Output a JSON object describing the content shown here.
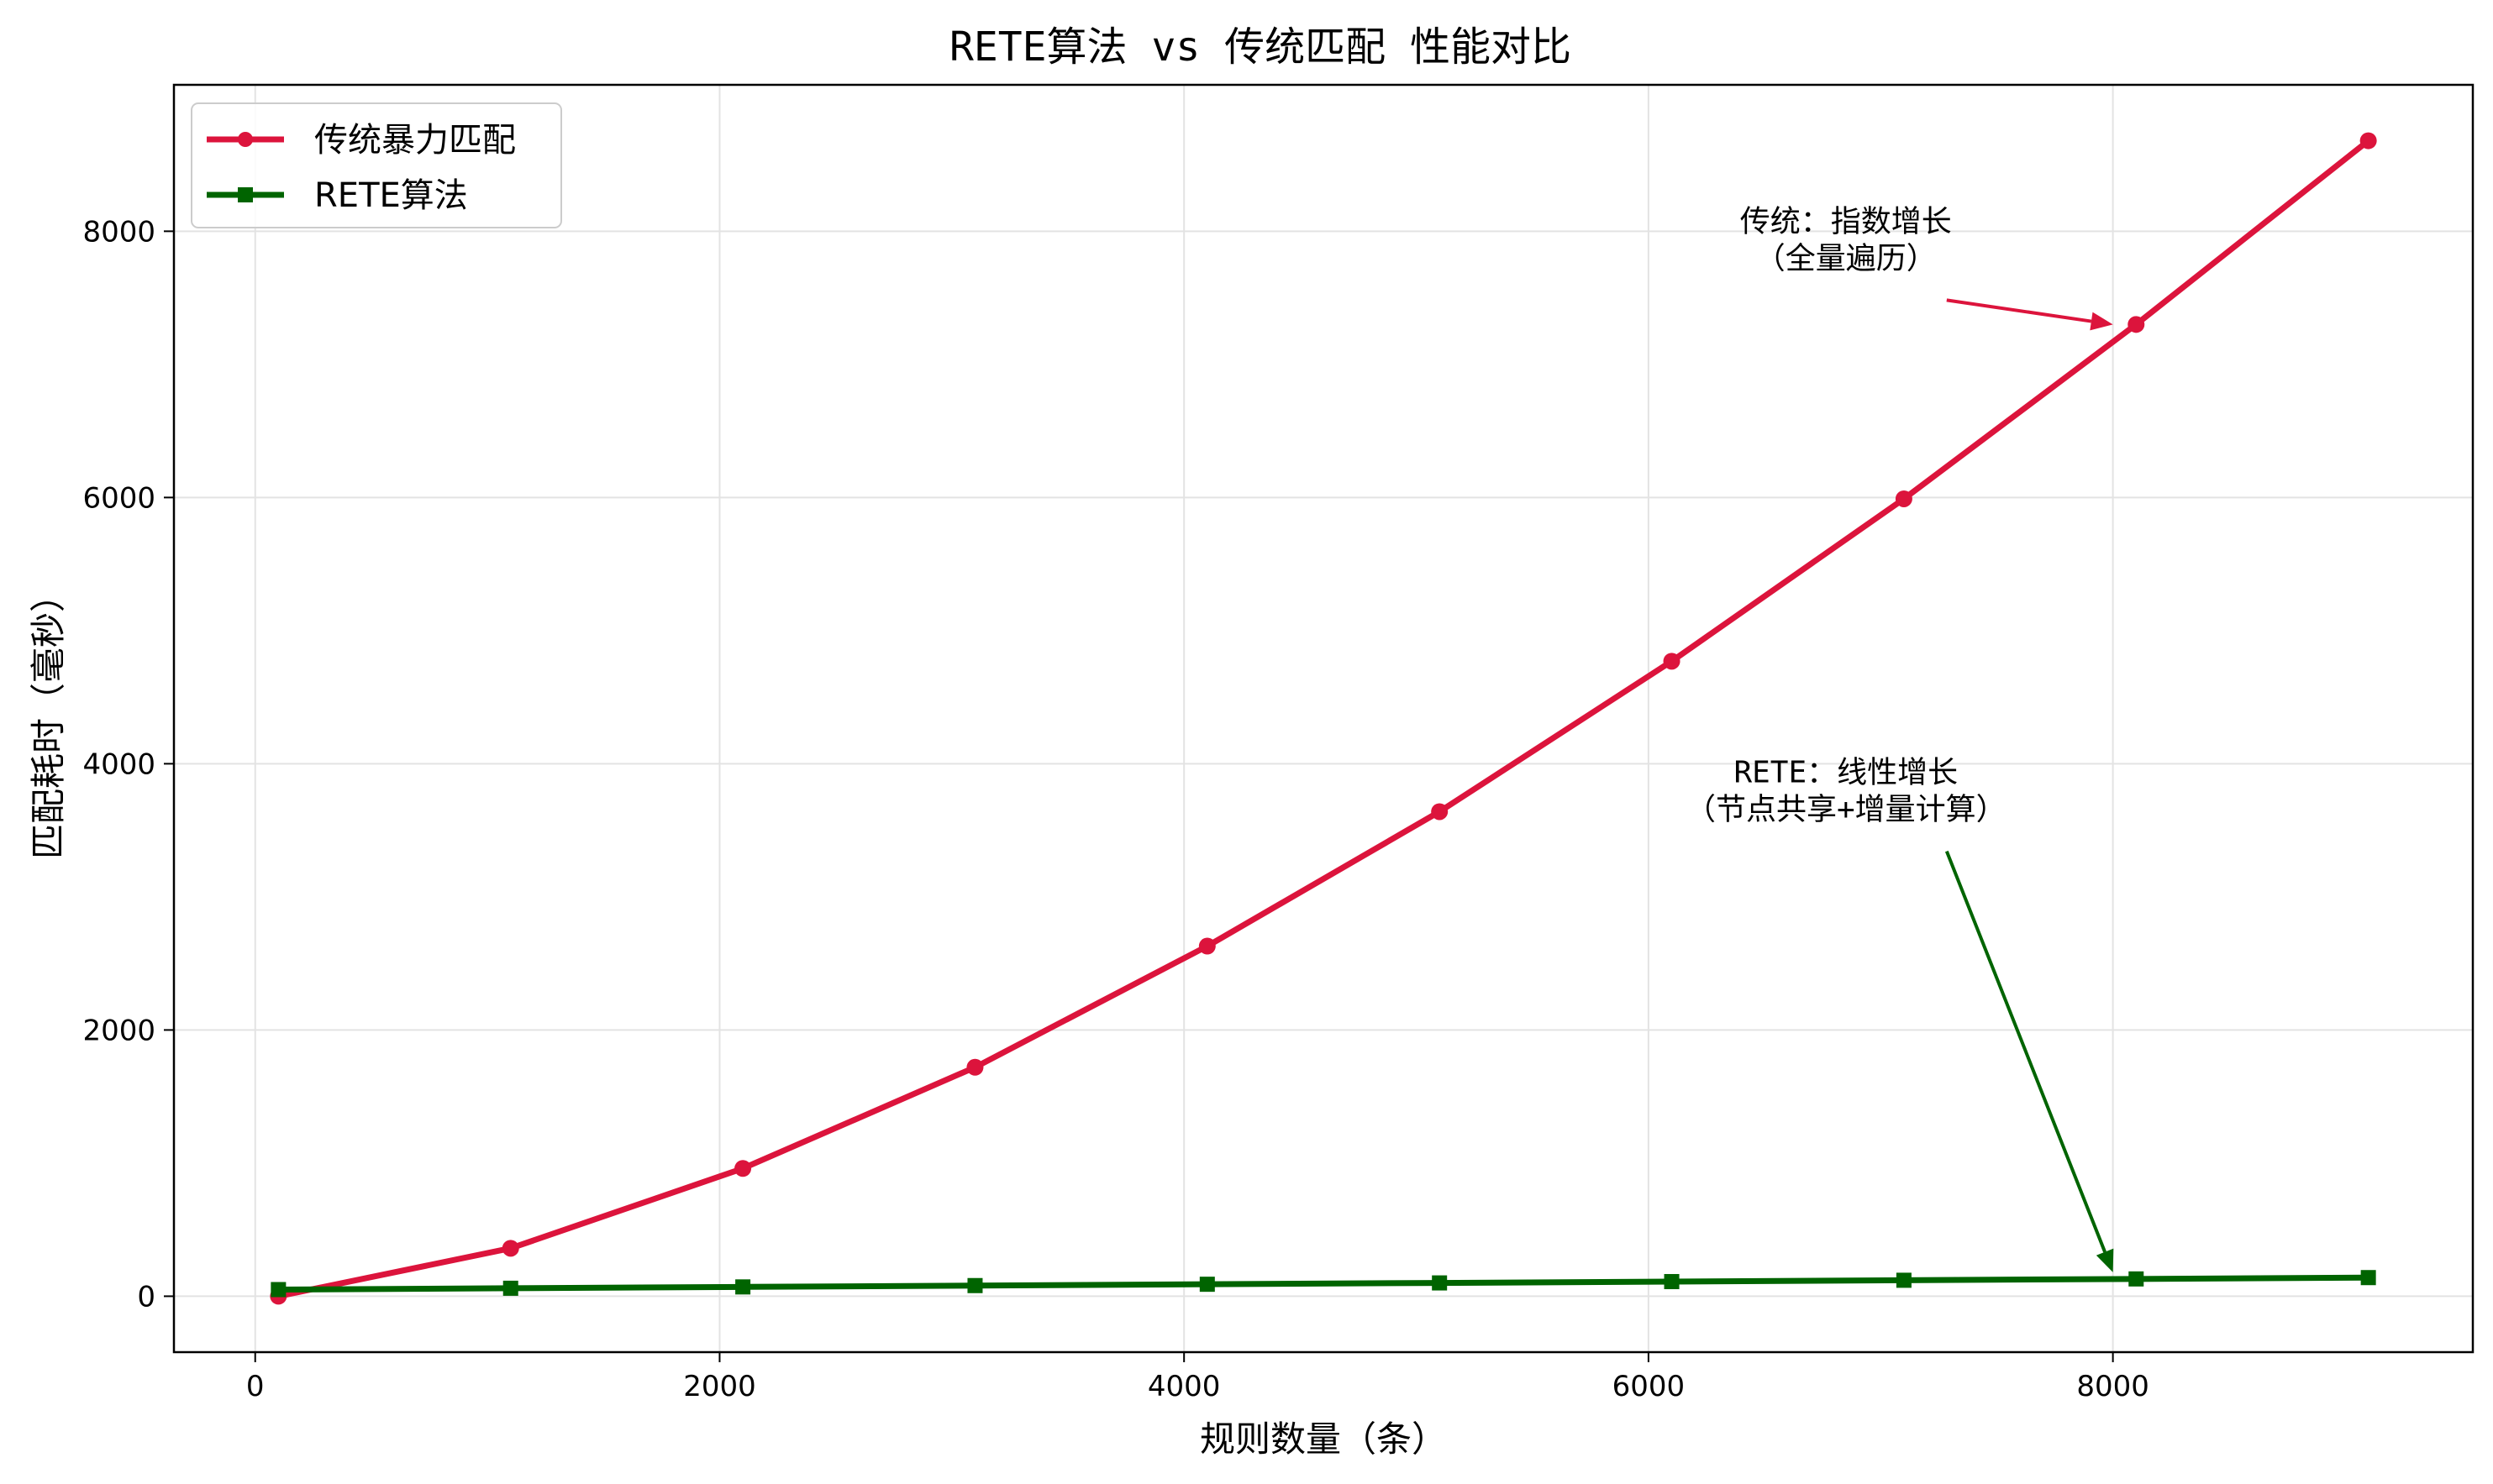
{
  "chart_data": {
    "type": "line",
    "title": "RETE算法 vs 传统匹配 性能对比",
    "xlabel": "规则数量（条）",
    "ylabel": "匹配耗时（毫秒）",
    "xlim": [
      -350,
      9550
    ],
    "ylim": [
      -420,
      9100
    ],
    "xticks": [
      0,
      2000,
      4000,
      6000,
      8000
    ],
    "yticks": [
      0,
      2000,
      4000,
      6000,
      8000
    ],
    "grid": true,
    "legend_position": "top-left",
    "x": [
      100,
      1100,
      2100,
      3100,
      4100,
      5100,
      6100,
      7100,
      8100,
      9100
    ],
    "series": [
      {
        "name": "传统暴力匹配",
        "color": "#dc143c",
        "marker": "circle",
        "values": [
          0,
          360,
          960,
          1720,
          2630,
          3640,
          4770,
          5990,
          7300,
          8680
        ]
      },
      {
        "name": "RETE算法",
        "color": "#006400",
        "marker": "square",
        "values": [
          50,
          60,
          70,
          80,
          90,
          100,
          110,
          120,
          130,
          140
        ]
      }
    ],
    "annotations": [
      {
        "lines": [
          "传统：指数增长",
          "（全量遍历）"
        ],
        "color": "#dc143c",
        "text_at": [
          6850,
          8000
        ],
        "arrow_to": [
          8000,
          7300
        ]
      },
      {
        "lines": [
          "RETE：线性增长",
          "（节点共享+增量计算）"
        ],
        "color": "#006400",
        "text_at": [
          6850,
          3860
        ],
        "arrow_to": [
          8000,
          180
        ]
      }
    ]
  }
}
